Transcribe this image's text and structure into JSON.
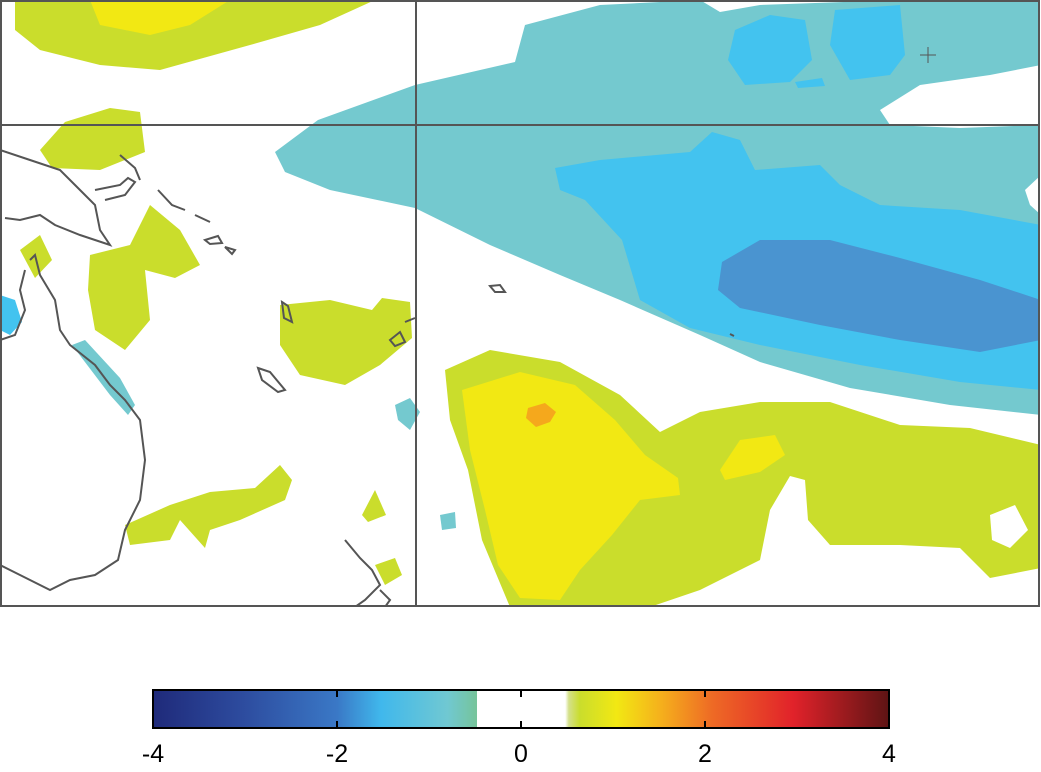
{
  "colorbar": {
    "min": -4,
    "max": 4,
    "ticks": [
      -4,
      -2,
      0,
      2,
      4
    ]
  }
}
